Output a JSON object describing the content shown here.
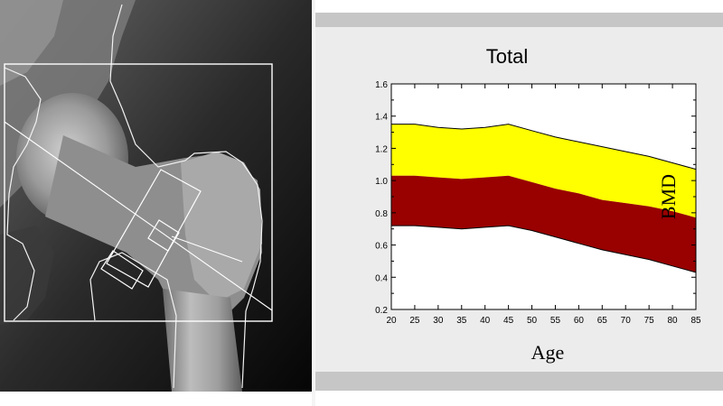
{
  "scan": {
    "alt": "DXA scan of proximal femur"
  },
  "chart_data": {
    "type": "area",
    "title": "Total",
    "xlabel": "Age",
    "ylabel": "BMD",
    "x": [
      20,
      25,
      30,
      35,
      40,
      45,
      50,
      55,
      60,
      65,
      70,
      75,
      80,
      85
    ],
    "xlim": [
      20,
      85
    ],
    "ylim": [
      0.2,
      1.6
    ],
    "xticks": [
      20,
      25,
      30,
      35,
      40,
      45,
      50,
      55,
      60,
      65,
      70,
      75,
      80,
      85
    ],
    "yticks": [
      0.2,
      0.4,
      0.6,
      0.8,
      1.0,
      1.2,
      1.4,
      1.6
    ],
    "ytick_labels": [
      "0.2",
      "0.4",
      "0.6",
      "0.8",
      "1.0",
      "1.2",
      "1.4",
      "1.6"
    ],
    "grid": false,
    "series": [
      {
        "color": "#ffff00",
        "lower": [
          1.03,
          1.03,
          1.02,
          1.01,
          1.02,
          1.03,
          0.99,
          0.95,
          0.92,
          0.88,
          0.86,
          0.84,
          0.81,
          0.77
        ],
        "upper": [
          1.35,
          1.35,
          1.33,
          1.32,
          1.33,
          1.35,
          1.31,
          1.27,
          1.24,
          1.21,
          1.18,
          1.15,
          1.11,
          1.07
        ]
      },
      {
        "color": "#990000",
        "lower": [
          0.72,
          0.72,
          0.71,
          0.7,
          0.71,
          0.72,
          0.69,
          0.65,
          0.61,
          0.57,
          0.54,
          0.51,
          0.47,
          0.43
        ],
        "upper": [
          1.03,
          1.03,
          1.02,
          1.01,
          1.02,
          1.03,
          0.99,
          0.95,
          0.92,
          0.88,
          0.86,
          0.84,
          0.81,
          0.77
        ]
      }
    ]
  }
}
